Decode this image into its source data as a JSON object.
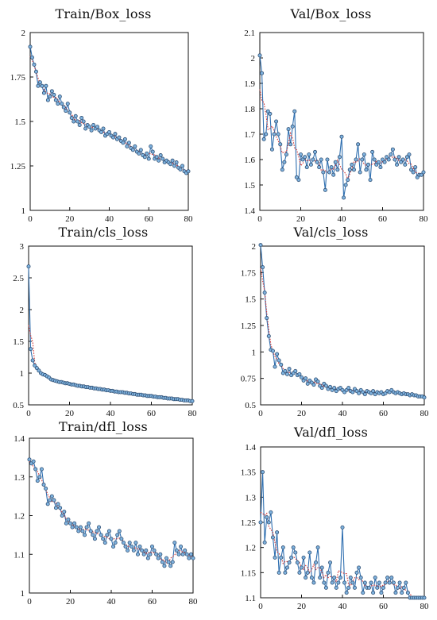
{
  "colors": {
    "data_line": "#2f6fb0",
    "marker_fill": "#7fb3df",
    "marker_stroke": "#304f73",
    "smooth_line": "#d23a3a",
    "axis": "#111111"
  },
  "chart_data": [
    {
      "type": "line",
      "title": "Train/Box_loss",
      "xlim": [
        0,
        80
      ],
      "ylim": [
        1,
        2
      ],
      "xticks": [
        0,
        20,
        40,
        60,
        80
      ],
      "yticks": [
        1,
        1.25,
        1.5,
        1.75,
        2
      ],
      "ytick_labels": [
        "1",
        "1.25",
        "1.5",
        "1.75",
        "2"
      ],
      "grid": false,
      "series": [
        {
          "values": [
            1.92,
            1.86,
            1.82,
            1.78,
            1.7,
            1.72,
            1.7,
            1.66,
            1.7,
            1.62,
            1.64,
            1.67,
            1.65,
            1.62,
            1.6,
            1.64,
            1.6,
            1.58,
            1.56,
            1.6,
            1.55,
            1.52,
            1.5,
            1.53,
            1.5,
            1.48,
            1.52,
            1.5,
            1.46,
            1.48,
            1.47,
            1.45,
            1.48,
            1.46,
            1.47,
            1.45,
            1.44,
            1.46,
            1.42,
            1.43,
            1.44,
            1.42,
            1.41,
            1.43,
            1.4,
            1.41,
            1.39,
            1.38,
            1.4,
            1.36,
            1.38,
            1.35,
            1.34,
            1.36,
            1.33,
            1.32,
            1.34,
            1.31,
            1.3,
            1.32,
            1.29,
            1.36,
            1.33,
            1.29,
            1.3,
            1.28,
            1.31,
            1.29,
            1.27,
            1.28,
            1.27,
            1.26,
            1.28,
            1.25,
            1.27,
            1.24,
            1.23,
            1.25,
            1.22,
            1.21,
            1.22
          ]
        }
      ]
    },
    {
      "type": "line",
      "title": "Val/Box_loss",
      "xlim": [
        0,
        80
      ],
      "ylim": [
        1.4,
        2.1
      ],
      "xticks": [
        0,
        20,
        40,
        60,
        80
      ],
      "yticks": [
        1.4,
        1.5,
        1.6,
        1.7,
        1.8,
        1.9,
        2,
        2.1
      ],
      "ytick_labels": [
        "1.4",
        "1.5",
        "1.6",
        "1.7",
        "1.8",
        "1.9",
        "2",
        "2.1"
      ],
      "grid": false,
      "series": [
        {
          "values": [
            2.01,
            1.94,
            1.68,
            1.7,
            1.79,
            1.78,
            1.64,
            1.7,
            1.75,
            1.7,
            1.66,
            1.56,
            1.59,
            1.62,
            1.72,
            1.66,
            1.73,
            1.79,
            1.53,
            1.52,
            1.62,
            1.6,
            1.61,
            1.57,
            1.62,
            1.58,
            1.6,
            1.63,
            1.59,
            1.57,
            1.6,
            1.55,
            1.48,
            1.6,
            1.55,
            1.57,
            1.54,
            1.59,
            1.56,
            1.61,
            1.69,
            1.45,
            1.5,
            1.52,
            1.56,
            1.58,
            1.56,
            1.6,
            1.66,
            1.55,
            1.6,
            1.62,
            1.56,
            1.58,
            1.52,
            1.63,
            1.6,
            1.58,
            1.59,
            1.57,
            1.6,
            1.59,
            1.61,
            1.6,
            1.62,
            1.64,
            1.6,
            1.58,
            1.61,
            1.59,
            1.6,
            1.58,
            1.61,
            1.62,
            1.56,
            1.55,
            1.57,
            1.53,
            1.54,
            1.54,
            1.55
          ]
        }
      ]
    },
    {
      "type": "line",
      "title": "Train/cls_loss",
      "xlim": [
        0,
        80
      ],
      "ylim": [
        0.5,
        3
      ],
      "xticks": [
        0,
        20,
        40,
        60,
        80
      ],
      "yticks": [
        0.5,
        1,
        1.5,
        2,
        2.5,
        3
      ],
      "ytick_labels": [
        "0.5",
        "1",
        "1.5",
        "2",
        "2.5",
        "3"
      ],
      "grid": false,
      "series": [
        {
          "values": [
            2.68,
            1.38,
            1.2,
            1.12,
            1.08,
            1.04,
            1.0,
            0.98,
            0.97,
            0.95,
            0.93,
            0.9,
            0.89,
            0.88,
            0.87,
            0.86,
            0.86,
            0.85,
            0.84,
            0.84,
            0.83,
            0.82,
            0.82,
            0.81,
            0.8,
            0.8,
            0.79,
            0.79,
            0.78,
            0.78,
            0.77,
            0.77,
            0.76,
            0.76,
            0.75,
            0.75,
            0.74,
            0.74,
            0.73,
            0.73,
            0.72,
            0.72,
            0.71,
            0.71,
            0.7,
            0.7,
            0.7,
            0.69,
            0.69,
            0.68,
            0.68,
            0.67,
            0.67,
            0.66,
            0.66,
            0.66,
            0.65,
            0.65,
            0.64,
            0.64,
            0.64,
            0.63,
            0.63,
            0.62,
            0.62,
            0.62,
            0.61,
            0.61,
            0.6,
            0.6,
            0.6,
            0.59,
            0.59,
            0.59,
            0.58,
            0.58,
            0.57,
            0.57,
            0.57,
            0.56,
            0.56
          ]
        }
      ]
    },
    {
      "type": "line",
      "title": "Val/cls_loss",
      "xlim": [
        0,
        80
      ],
      "ylim": [
        0.5,
        2
      ],
      "xticks": [
        0,
        20,
        40,
        60,
        80
      ],
      "yticks": [
        0.5,
        0.75,
        1,
        1.25,
        1.5,
        1.75,
        2
      ],
      "ytick_labels": [
        "0.5",
        "0.75",
        "1",
        "1.25",
        "1.5",
        "1.75",
        "2"
      ],
      "grid": false,
      "series": [
        {
          "values": [
            2.01,
            1.8,
            1.56,
            1.32,
            1.15,
            1.02,
            1.01,
            0.86,
            0.98,
            0.92,
            0.88,
            0.8,
            0.82,
            0.79,
            0.84,
            0.78,
            0.8,
            0.82,
            0.78,
            0.79,
            0.76,
            0.73,
            0.75,
            0.7,
            0.73,
            0.71,
            0.69,
            0.74,
            0.72,
            0.68,
            0.66,
            0.7,
            0.68,
            0.65,
            0.67,
            0.64,
            0.66,
            0.63,
            0.65,
            0.66,
            0.64,
            0.62,
            0.64,
            0.66,
            0.63,
            0.62,
            0.65,
            0.63,
            0.61,
            0.64,
            0.62,
            0.6,
            0.63,
            0.62,
            0.61,
            0.63,
            0.6,
            0.62,
            0.61,
            0.62,
            0.6,
            0.61,
            0.63,
            0.62,
            0.64,
            0.62,
            0.61,
            0.62,
            0.61,
            0.6,
            0.61,
            0.6,
            0.6,
            0.59,
            0.6,
            0.59,
            0.59,
            0.58,
            0.58,
            0.58,
            0.57
          ]
        }
      ]
    },
    {
      "type": "line",
      "title": "Train/dfl_loss",
      "xlim": [
        0,
        80
      ],
      "ylim": [
        1,
        1.4
      ],
      "xticks": [
        0,
        20,
        40,
        60,
        80
      ],
      "yticks": [
        1,
        1.1,
        1.2,
        1.3,
        1.4
      ],
      "ytick_labels": [
        "1",
        "1.1",
        "1.2",
        "1.3",
        "1.4"
      ],
      "grid": false,
      "series": [
        {
          "values": [
            1.345,
            1.335,
            1.34,
            1.32,
            1.29,
            1.3,
            1.32,
            1.28,
            1.27,
            1.23,
            1.24,
            1.25,
            1.24,
            1.22,
            1.23,
            1.22,
            1.2,
            1.21,
            1.18,
            1.19,
            1.18,
            1.17,
            1.18,
            1.17,
            1.16,
            1.17,
            1.16,
            1.15,
            1.17,
            1.18,
            1.16,
            1.15,
            1.14,
            1.16,
            1.17,
            1.15,
            1.14,
            1.13,
            1.15,
            1.16,
            1.14,
            1.12,
            1.13,
            1.15,
            1.16,
            1.14,
            1.13,
            1.12,
            1.11,
            1.13,
            1.12,
            1.11,
            1.13,
            1.1,
            1.12,
            1.11,
            1.1,
            1.11,
            1.09,
            1.1,
            1.12,
            1.11,
            1.1,
            1.09,
            1.1,
            1.08,
            1.07,
            1.09,
            1.08,
            1.07,
            1.08,
            1.13,
            1.11,
            1.1,
            1.12,
            1.1,
            1.11,
            1.1,
            1.09,
            1.1,
            1.09
          ]
        }
      ]
    },
    {
      "type": "line",
      "title": "Val/dfl_loss",
      "xlim": [
        0,
        80
      ],
      "ylim": [
        1.1,
        1.4
      ],
      "xticks": [
        0,
        20,
        40,
        60,
        80
      ],
      "yticks": [
        1.1,
        1.15,
        1.2,
        1.25,
        1.3,
        1.35,
        1.4
      ],
      "ytick_labels": [
        "1.1",
        "1.15",
        "1.2",
        "1.25",
        "1.3",
        "1.35",
        "1.4"
      ],
      "grid": false,
      "series": [
        {
          "values": [
            1.25,
            1.35,
            1.21,
            1.26,
            1.25,
            1.27,
            1.22,
            1.18,
            1.23,
            1.15,
            1.18,
            1.2,
            1.15,
            1.16,
            1.17,
            1.18,
            1.2,
            1.19,
            1.17,
            1.15,
            1.16,
            1.18,
            1.14,
            1.15,
            1.19,
            1.14,
            1.13,
            1.17,
            1.2,
            1.14,
            1.16,
            1.13,
            1.12,
            1.15,
            1.17,
            1.13,
            1.14,
            1.12,
            1.13,
            1.14,
            1.24,
            1.13,
            1.11,
            1.12,
            1.14,
            1.13,
            1.12,
            1.15,
            1.16,
            1.14,
            1.11,
            1.13,
            1.12,
            1.12,
            1.13,
            1.11,
            1.14,
            1.12,
            1.13,
            1.11,
            1.12,
            1.13,
            1.14,
            1.13,
            1.14,
            1.13,
            1.11,
            1.12,
            1.13,
            1.11,
            1.12,
            1.13,
            1.11,
            1.1,
            1.1,
            1.1,
            1.1,
            1.1,
            1.1,
            1.1,
            1.1
          ]
        }
      ]
    }
  ]
}
